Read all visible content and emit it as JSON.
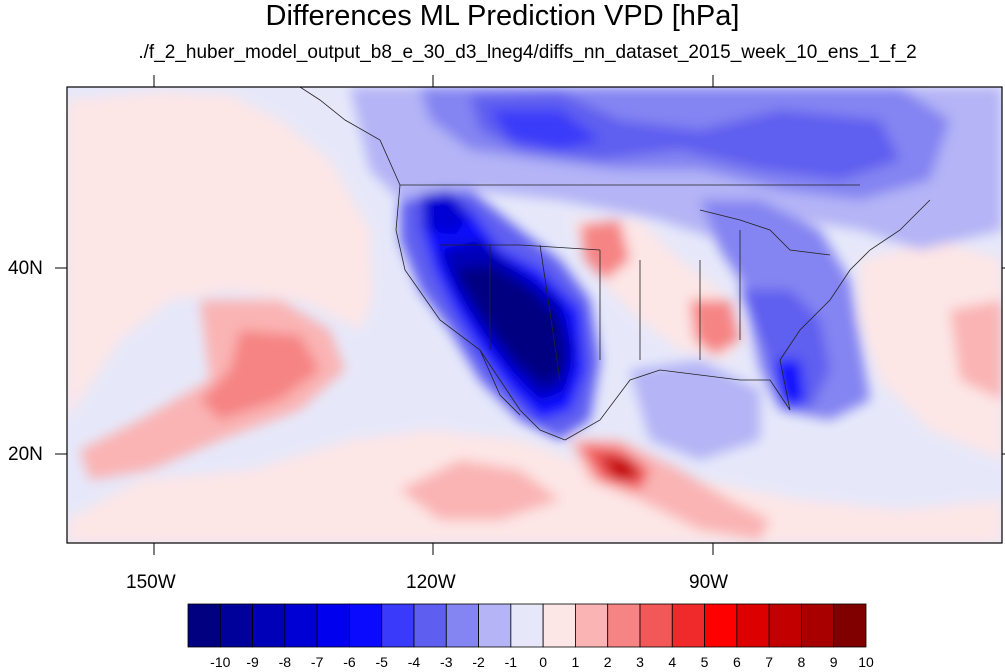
{
  "title": "Differences ML Prediction VPD [hPa]",
  "subtitle": "./f_2_huber_model_output_b8_e_30_d3_lneg4/diffs_nn_dataset_2015_week_10_ens_1_f_2",
  "lat_labels": [
    "40N",
    "20N"
  ],
  "lon_labels": [
    "150W",
    "120W",
    "90W"
  ],
  "colorbar": {
    "labels": [
      "-10",
      "-9",
      "-8",
      "-7",
      "-6",
      "-5",
      "-4",
      "-3",
      "-2",
      "-1",
      "0",
      "1",
      "2",
      "3",
      "4",
      "5",
      "6",
      "7",
      "8",
      "9",
      "10"
    ],
    "colors": [
      "#000080",
      "#00009a",
      "#0000b8",
      "#0000d4",
      "#0000ee",
      "#0a0aff",
      "#3a3afa",
      "#5e5ef0",
      "#8484f2",
      "#b4b4f6",
      "#e6e8fa",
      "#fde6e6",
      "#fab4b4",
      "#f68484",
      "#f25858",
      "#f02a2a",
      "#ff0000",
      "#dc0000",
      "#c20000",
      "#a80000",
      "#800000"
    ]
  },
  "chart_data": {
    "type": "heatmap",
    "title": "Differences ML Prediction VPD [hPa]",
    "subtitle": "./f_2_huber_model_output_b8_e_30_d3_lneg4/diffs_nn_dataset_2015_week_10_ens_1_f_2",
    "xlabel": "",
    "ylabel": "",
    "x_ticks": [
      "150W",
      "120W",
      "90W"
    ],
    "y_ticks": [
      "40N",
      "20N"
    ],
    "lon_range": [
      -159.3,
      -60.4
    ],
    "lat_range": [
      10.2,
      58.7
    ],
    "value_range": [
      -10,
      10
    ],
    "colorbar_levels": [
      -10,
      -9,
      -8,
      -7,
      -6,
      -5,
      -4,
      -3,
      -2,
      -1,
      0,
      1,
      2,
      3,
      4,
      5,
      6,
      7,
      8,
      9,
      10
    ]
  }
}
